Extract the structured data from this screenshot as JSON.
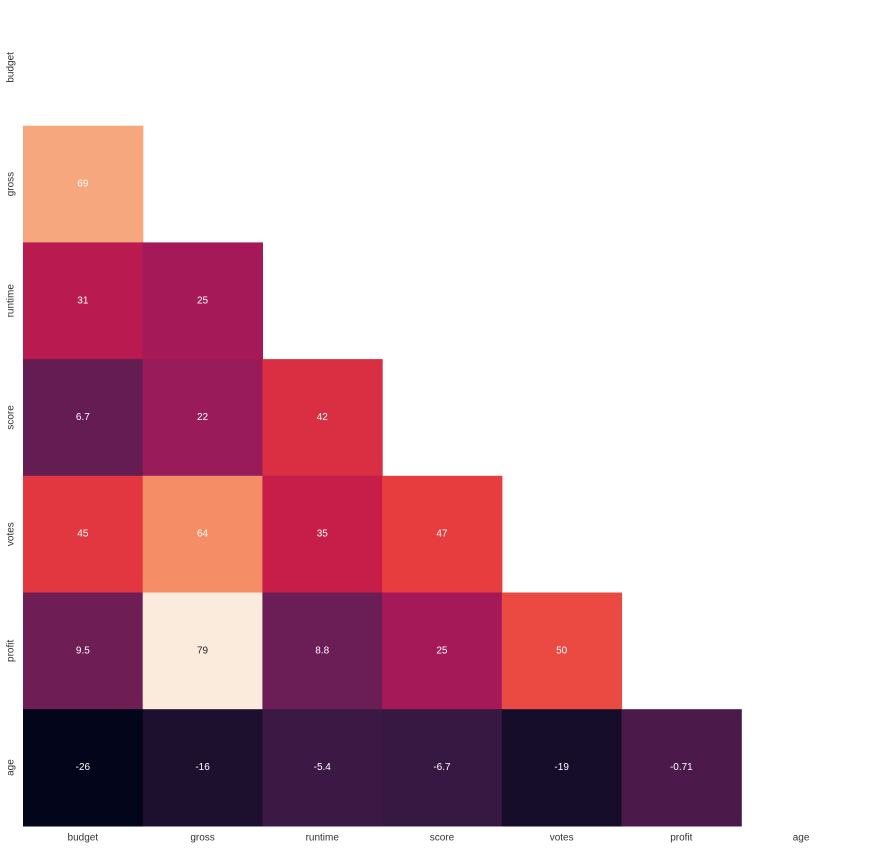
{
  "chart_data": {
    "type": "heatmap",
    "title": "",
    "xlabel": "",
    "ylabel": "",
    "variables": [
      "budget",
      "gross",
      "runtime",
      "score",
      "votes",
      "profit",
      "age"
    ],
    "mask": "upper-triangle-and-diagonal",
    "colormap": "rocket",
    "value_range": [
      -26,
      79
    ],
    "colorbar": false,
    "cells": [
      {
        "row": "gross",
        "col": "budget",
        "value": 69,
        "label": "69"
      },
      {
        "row": "runtime",
        "col": "budget",
        "value": 31,
        "label": "31"
      },
      {
        "row": "runtime",
        "col": "gross",
        "value": 25,
        "label": "25"
      },
      {
        "row": "score",
        "col": "budget",
        "value": 6.7,
        "label": "6.7"
      },
      {
        "row": "score",
        "col": "gross",
        "value": 22,
        "label": "22"
      },
      {
        "row": "score",
        "col": "runtime",
        "value": 42,
        "label": "42"
      },
      {
        "row": "votes",
        "col": "budget",
        "value": 45,
        "label": "45"
      },
      {
        "row": "votes",
        "col": "gross",
        "value": 64,
        "label": "64"
      },
      {
        "row": "votes",
        "col": "runtime",
        "value": 35,
        "label": "35"
      },
      {
        "row": "votes",
        "col": "score",
        "value": 47,
        "label": "47"
      },
      {
        "row": "profit",
        "col": "budget",
        "value": 9.5,
        "label": "9.5"
      },
      {
        "row": "profit",
        "col": "gross",
        "value": 79,
        "label": "79"
      },
      {
        "row": "profit",
        "col": "runtime",
        "value": 8.8,
        "label": "8.8"
      },
      {
        "row": "profit",
        "col": "score",
        "value": 25,
        "label": "25"
      },
      {
        "row": "profit",
        "col": "votes",
        "value": 50,
        "label": "50"
      },
      {
        "row": "age",
        "col": "budget",
        "value": -26,
        "label": "-26"
      },
      {
        "row": "age",
        "col": "gross",
        "value": -16,
        "label": "-16"
      },
      {
        "row": "age",
        "col": "runtime",
        "value": -5.4,
        "label": "-5.4"
      },
      {
        "row": "age",
        "col": "score",
        "value": -6.7,
        "label": "-6.7"
      },
      {
        "row": "age",
        "col": "votes",
        "value": -19,
        "label": "-19"
      },
      {
        "row": "age",
        "col": "profit",
        "value": -0.71,
        "label": "-0.71"
      }
    ]
  }
}
